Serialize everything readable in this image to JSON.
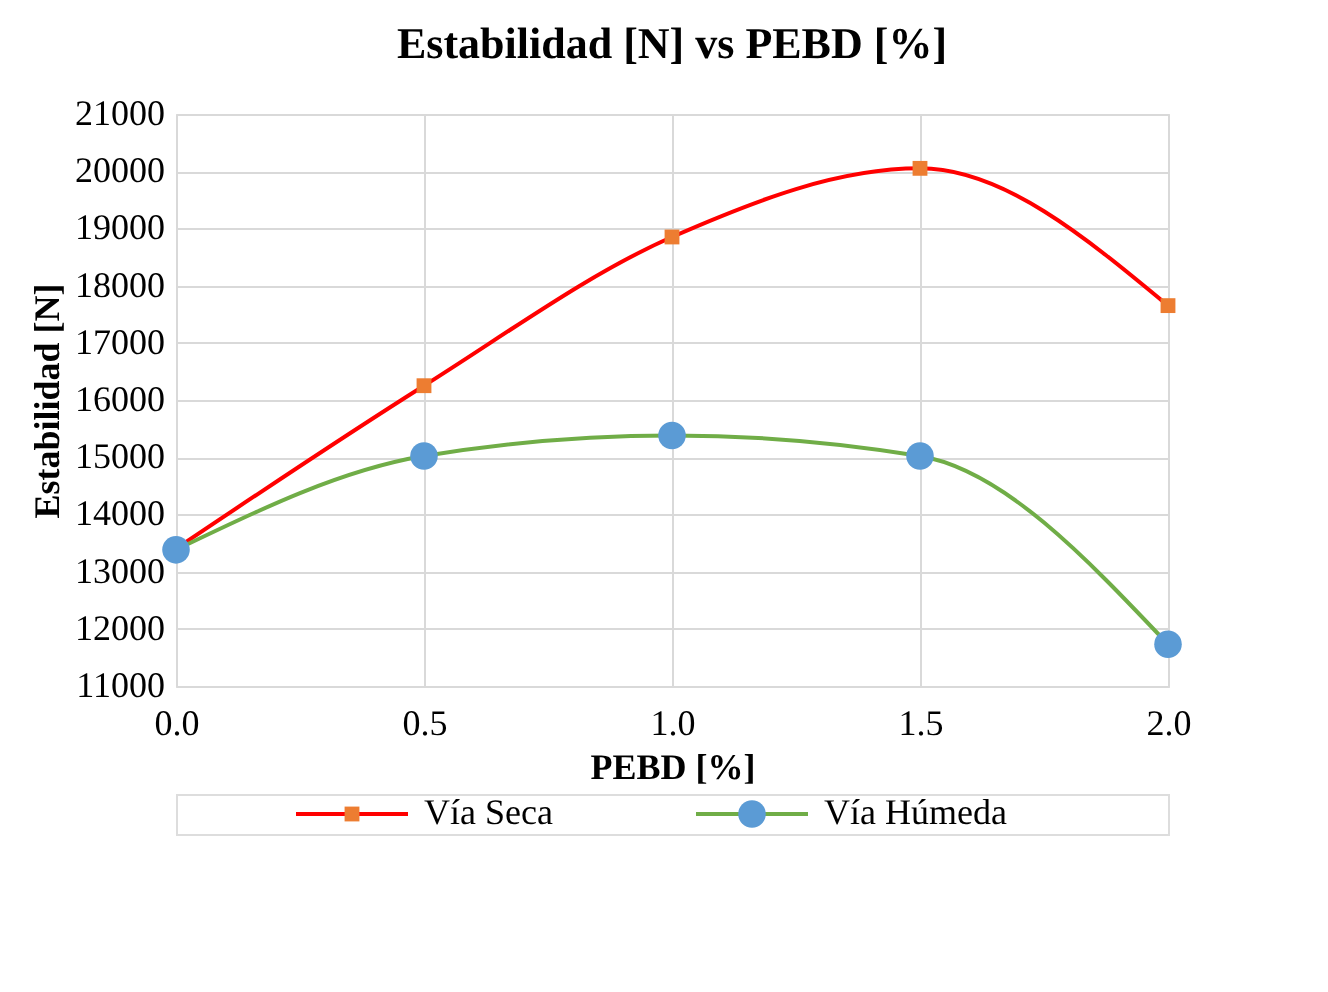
{
  "chart_data": {
    "type": "line",
    "title": "Estabilidad [N] vs PEBD [%]",
    "xlabel": "PEBD [%]",
    "ylabel": "Estabilidad [N]",
    "x": [
      0.0,
      0.5,
      1.0,
      1.5,
      2.0
    ],
    "series": [
      {
        "name": "Vía Seca",
        "color": "#ff0000",
        "colors": [
          "#ed7d31",
          "#ed7d31",
          "#ed7d31",
          "#ed7d31",
          "#ed7d31"
        ],
        "marker": "square",
        "values": [
          13400,
          16250,
          18850,
          20050,
          17650
        ]
      },
      {
        "name": "Vía Húmeda",
        "color": "#70ad47",
        "colors": [
          "#5b9bd5",
          "#5b9bd5",
          "#5b9bd5",
          "#5b9bd5",
          "#5b9bd5"
        ],
        "marker": "circle",
        "values": [
          13380,
          15020,
          15380,
          15020,
          11730
        ]
      }
    ],
    "xlim": [
      0.0,
      2.0
    ],
    "xticks": [
      {
        "value": 0,
        "label": "0.0"
      },
      {
        "value": 0.5,
        "label": "0.5"
      },
      {
        "value": 1,
        "label": "1.0"
      },
      {
        "value": 1.5,
        "label": "1.5"
      },
      {
        "value": 2,
        "label": "2.0"
      }
    ],
    "ylim": [
      11000,
      21000
    ],
    "yticks": [
      11000,
      12000,
      13000,
      14000,
      15000,
      16000,
      17000,
      18000,
      19000,
      20000,
      21000
    ],
    "grid": true,
    "legend": "bottom",
    "line_style": "solid"
  }
}
